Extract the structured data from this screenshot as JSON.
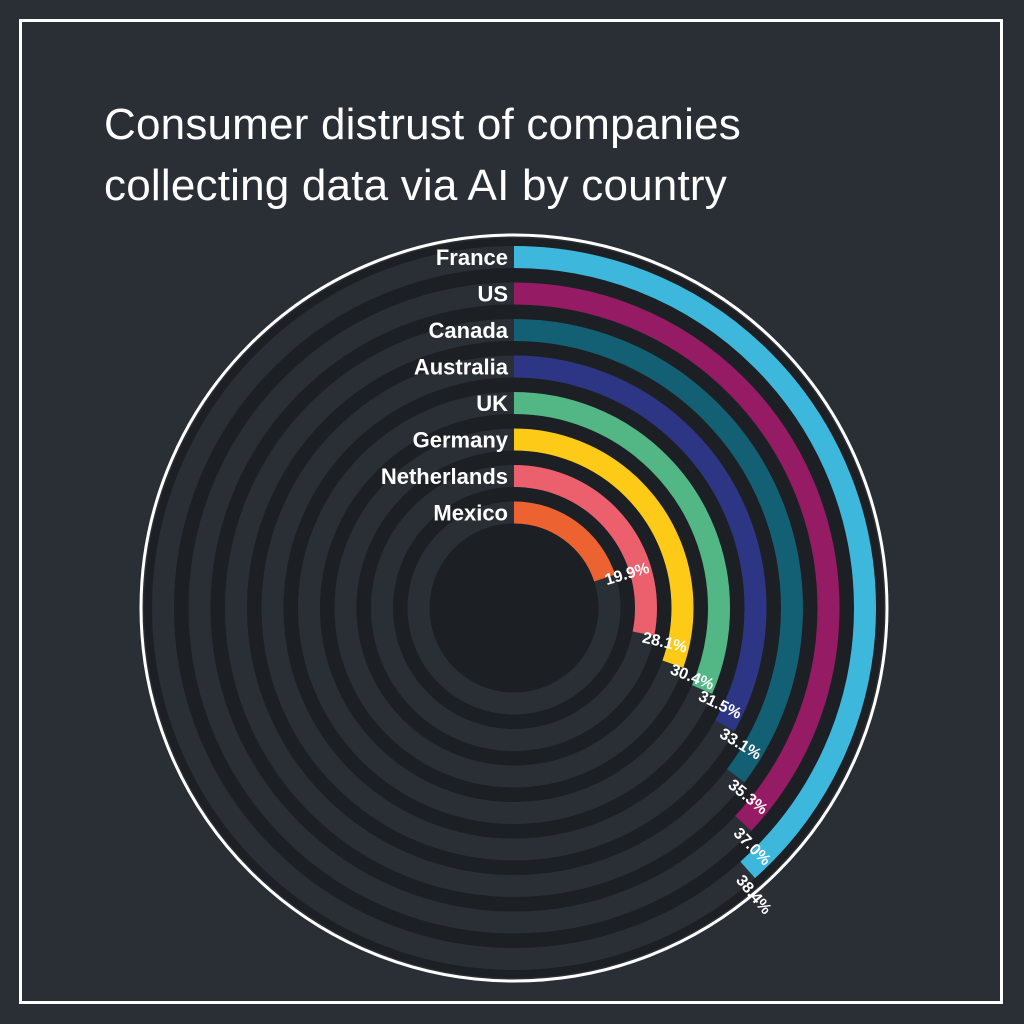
{
  "title_lines": [
    "Consumer distrust of companies",
    "collecting data via AI by country"
  ],
  "chart_data": {
    "type": "radial-bar",
    "title": "Consumer distrust of companies collecting data via AI by country",
    "scale_max_percent": 100,
    "categories": [
      "France",
      "US",
      "Canada",
      "Australia",
      "UK",
      "Germany",
      "Netherlands",
      "Mexico"
    ],
    "values": [
      38.4,
      37.0,
      35.3,
      33.1,
      31.5,
      30.4,
      28.1,
      19.9
    ],
    "value_labels": [
      "38.4%",
      "37.0%",
      "35.3%",
      "33.1%",
      "31.5%",
      "30.4%",
      "28.1%",
      "19.9%"
    ],
    "colors": [
      "#3db8dc",
      "#951b65",
      "#135f73",
      "#2d3585",
      "#52b784",
      "#fdca17",
      "#ec5f6c",
      "#ec6331"
    ]
  },
  "colors": {
    "background": "#2a2f35",
    "track": "#2a2f35",
    "gap": "#1c1f24",
    "outline": "#ffffff",
    "text": "#ffffff"
  }
}
